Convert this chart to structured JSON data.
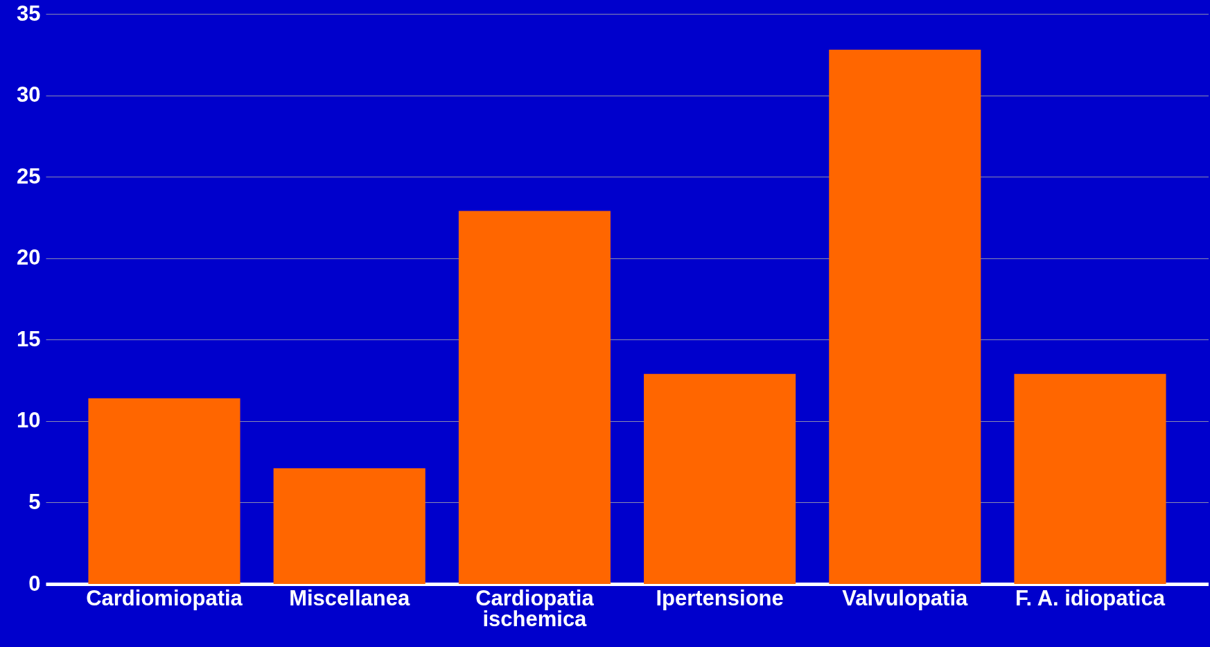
{
  "chart_data": {
    "type": "bar",
    "categories": [
      "Cardiomiopatia",
      "Miscellanea",
      "Cardiopatia ischemica",
      "Ipertensione",
      "Valvulopatia",
      "F. A. idiopatica"
    ],
    "values": [
      11.4,
      7.1,
      22.9,
      12.9,
      32.8,
      12.9
    ],
    "color": "#ff6600",
    "ylim": [
      0,
      35
    ],
    "yticks": [
      0,
      5,
      10,
      15,
      20,
      25,
      30,
      35
    ],
    "grid": "y"
  }
}
